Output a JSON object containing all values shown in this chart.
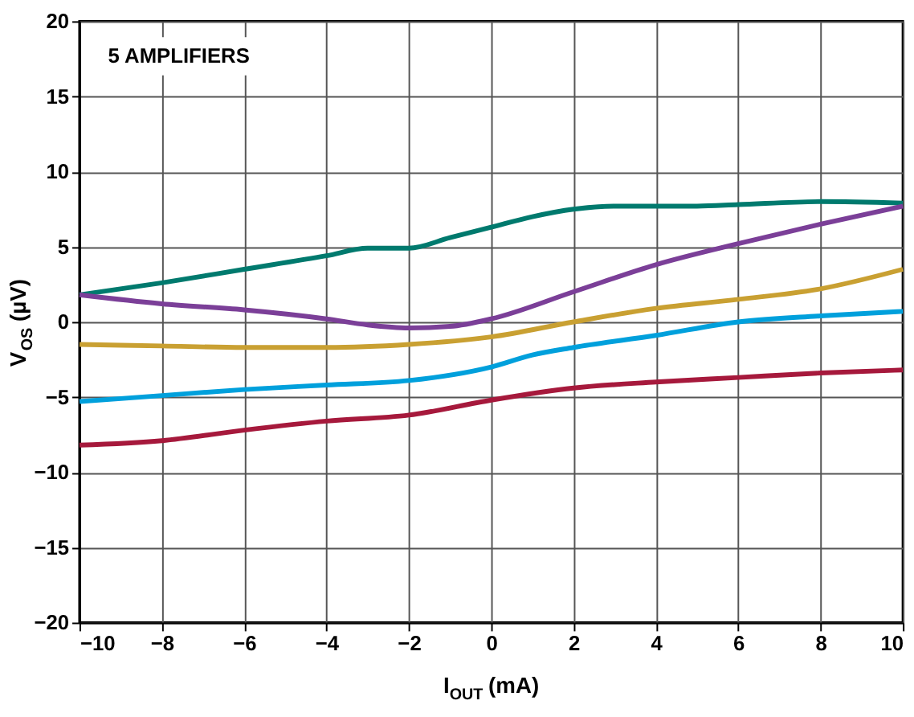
{
  "chart_data": {
    "type": "line",
    "xlabel": "I$_{OUT}$ (mA)",
    "ylabel": "V$_{OS}$ (µV)",
    "annotations": [
      "5 AMPLIFIERS"
    ],
    "xlim": [
      -10,
      10
    ],
    "xticks": [
      -10,
      -8,
      -6,
      -4,
      -2,
      0,
      2,
      4,
      6,
      8,
      10
    ],
    "ylim": [
      -20,
      20
    ],
    "yticks": [
      -20,
      -15,
      -10,
      -5,
      0,
      5,
      10,
      15,
      20
    ],
    "grid": true,
    "line_style": "solid",
    "marker": "none",
    "series": [
      {
        "color": "#007a6e",
        "x": [
          -10,
          -8,
          -6,
          -4,
          -3,
          -2,
          -1,
          0,
          1,
          2,
          3,
          4,
          5,
          6,
          8,
          10
        ],
        "values": [
          1.8,
          2.6,
          3.5,
          4.4,
          4.9,
          4.9,
          5.6,
          6.3,
          7.0,
          7.5,
          7.7,
          7.7,
          7.7,
          7.8,
          8.0,
          7.9
        ]
      },
      {
        "color": "#7b3f98",
        "x": [
          -10,
          -8,
          -6,
          -4,
          -3,
          -2,
          -1,
          0,
          2,
          4,
          6,
          8,
          10
        ],
        "values": [
          1.8,
          1.2,
          0.8,
          0.2,
          -0.2,
          -0.4,
          -0.3,
          0.2,
          2.0,
          3.8,
          5.2,
          6.5,
          7.7
        ]
      },
      {
        "color": "#c9a032",
        "x": [
          -10,
          -8,
          -6,
          -4,
          -2,
          0,
          2,
          4,
          6,
          8,
          10
        ],
        "values": [
          -1.5,
          -1.6,
          -1.7,
          -1.7,
          -1.5,
          -1.0,
          0,
          0.9,
          1.5,
          2.2,
          3.5
        ]
      },
      {
        "color": "#00a0dc",
        "x": [
          -10,
          -8,
          -6,
          -4,
          -2,
          0,
          1,
          2,
          4,
          6,
          8,
          10
        ],
        "values": [
          -5.3,
          -4.9,
          -4.5,
          -4.2,
          -3.9,
          -3.0,
          -2.2,
          -1.7,
          -0.9,
          0,
          0.4,
          0.7
        ]
      },
      {
        "color": "#a6193c",
        "x": [
          -10,
          -8,
          -6,
          -4,
          -2,
          0,
          2,
          4,
          6,
          8,
          10
        ],
        "values": [
          -8.2,
          -7.9,
          -7.2,
          -6.6,
          -6.2,
          -5.2,
          -4.4,
          -4.0,
          -3.7,
          -3.4,
          -3.2
        ]
      }
    ]
  }
}
